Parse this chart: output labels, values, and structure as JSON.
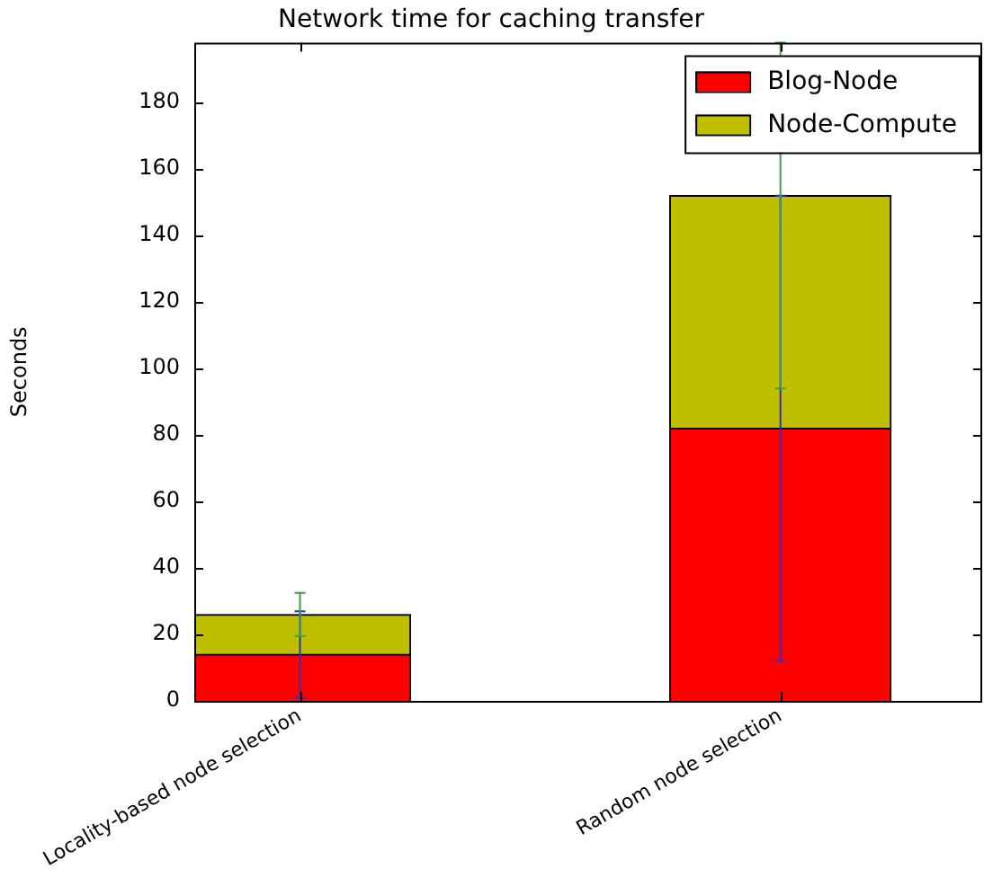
{
  "chart_data": {
    "type": "bar",
    "title": "Network time for caching transfer",
    "ylabel": "Seconds",
    "categories": [
      "Locality-based node selection",
      "Random node selection"
    ],
    "stacked": true,
    "legend": "top right",
    "grid": false,
    "ylim": [
      0,
      198
    ],
    "yticks": [
      0,
      20,
      40,
      60,
      80,
      100,
      120,
      140,
      160,
      180
    ],
    "series": [
      {
        "name": "Blog-Node",
        "color": "#ff0000",
        "values": [
          14,
          82
        ],
        "errors": [
          13,
          70
        ]
      },
      {
        "name": "Node-Compute",
        "color": "#bfbf00",
        "values": [
          12,
          70
        ],
        "errors": [
          6.5,
          [
            94,
            198
          ]
        ]
      }
    ]
  }
}
